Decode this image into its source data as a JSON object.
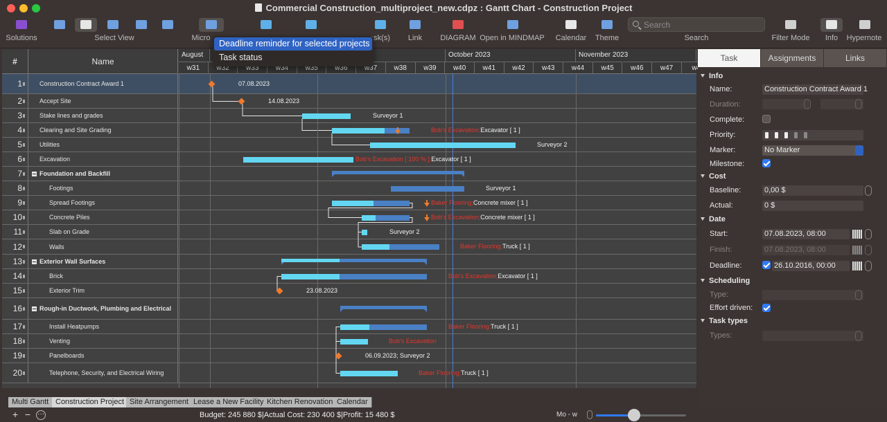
{
  "window": {
    "title": "Commercial Construction_multiproject_new.cdpz : Gantt Chart - Construction Project"
  },
  "toolbar": {
    "items": [
      {
        "id": "solutions",
        "label": "Solutions",
        "icon": "solutions-icon",
        "color": "#8a4fd0"
      },
      {
        "id": "view1",
        "label": "",
        "icon": "panels-icon",
        "color": "#6fa0e0"
      },
      {
        "id": "view2",
        "label": "",
        "icon": "gantt-view-icon",
        "color": "#e6e6e6"
      },
      {
        "id": "view3",
        "label": "Select View",
        "icon": "resources-icon",
        "color": "#6fa0e0"
      },
      {
        "id": "view4",
        "label": "",
        "icon": "resource-gantt-icon",
        "color": "#6fa0e0"
      },
      {
        "id": "view5",
        "label": "",
        "icon": "document-icon",
        "color": "#6fa0e0"
      },
      {
        "id": "micro",
        "label": "Micro",
        "icon": "printer-icon",
        "color": "#6fa0e0"
      },
      {
        "id": "add",
        "label": "",
        "icon": "add-task-icon",
        "color": "#5fb0e8"
      },
      {
        "id": "outdent",
        "label": "",
        "icon": "outdent-icon",
        "color": "#5fb0e8"
      },
      {
        "id": "tasks",
        "label": "ask(s)",
        "icon": "indent-icon",
        "color": "#5fb0e8"
      },
      {
        "id": "link",
        "label": "Link",
        "icon": "link-icon",
        "color": "#6fa0e0"
      },
      {
        "id": "diagram",
        "label": "DIAGRAM",
        "icon": "diagram-icon",
        "color": "#e05050"
      },
      {
        "id": "mindmap",
        "label": "Open in MINDMAP",
        "icon": "mindmap-icon",
        "color": "#6fa0e0"
      },
      {
        "id": "calendar",
        "label": "Calendar",
        "icon": "calendar-icon",
        "color": "#e8e8e8"
      },
      {
        "id": "theme",
        "label": "Theme",
        "icon": "theme-icon",
        "color": "#6fa0e0"
      },
      {
        "id": "search",
        "label": "Search",
        "icon": "",
        "color": ""
      },
      {
        "id": "filter",
        "label": "Filter Mode",
        "icon": "filter-icon",
        "color": "#cfcfcf"
      },
      {
        "id": "info",
        "label": "Info",
        "icon": "toggle-icon",
        "color": "#e6e6e6"
      },
      {
        "id": "hypernote",
        "label": "Hypernote",
        "icon": "hypernote-icon",
        "color": "#cfcfcf"
      }
    ],
    "search_placeholder": "Search"
  },
  "dropdown": {
    "items": [
      "Deadline reminder for selected projects",
      "Task status"
    ]
  },
  "gantt": {
    "header_num": "#",
    "header_name": "Name",
    "months": [
      "August",
      "October 2023",
      "November 2023"
    ],
    "weeks": [
      "w31",
      "w32",
      "w33",
      "w34",
      "w35",
      "w36",
      "w37",
      "w38",
      "w39",
      "w40",
      "w41",
      "w42",
      "w43",
      "w44",
      "w45",
      "w46",
      "w47",
      "w4"
    ],
    "rows": [
      {
        "num": "1",
        "name": "Construction Contract Award 1",
        "level": 1,
        "group": false
      },
      {
        "num": "2",
        "name": "Accept Site",
        "level": 1,
        "group": false
      },
      {
        "num": "3",
        "name": "Stake lines and grades",
        "level": 1,
        "group": false
      },
      {
        "num": "4",
        "name": "Clearing and Site Grading",
        "level": 1,
        "group": false
      },
      {
        "num": "5",
        "name": "Utilities",
        "level": 1,
        "group": false
      },
      {
        "num": "6",
        "name": "Excavation",
        "level": 1,
        "group": false
      },
      {
        "num": "7",
        "name": "Foundation and Backfill",
        "level": 0,
        "group": true
      },
      {
        "num": "8",
        "name": "Footings",
        "level": 2,
        "group": false
      },
      {
        "num": "9",
        "name": "Spread Footings",
        "level": 2,
        "group": false
      },
      {
        "num": "10",
        "name": "Concrete Piles",
        "level": 2,
        "group": false
      },
      {
        "num": "11",
        "name": "Slab on Grade",
        "level": 2,
        "group": false
      },
      {
        "num": "12",
        "name": "Walls",
        "level": 2,
        "group": false
      },
      {
        "num": "13",
        "name": "Exterior Wall Surfaces",
        "level": 0,
        "group": true
      },
      {
        "num": "14",
        "name": "Brick",
        "level": 2,
        "group": false
      },
      {
        "num": "15",
        "name": "Exterior Trim",
        "level": 2,
        "group": false
      },
      {
        "num": "16",
        "name": "Rough-in Ductwork, Plumbing and Electrical",
        "level": 0,
        "group": true
      },
      {
        "num": "17",
        "name": "Install Heatpumps",
        "level": 2,
        "group": false
      },
      {
        "num": "18",
        "name": "Venting",
        "level": 2,
        "group": false
      },
      {
        "num": "19",
        "name": "Panelboards",
        "level": 2,
        "group": false
      },
      {
        "num": "20",
        "name": "Telephone, Security, and Electrical Wiring",
        "level": 2,
        "group": false
      }
    ],
    "bar_labels": [
      {
        "red": "",
        "white": "07.08.2023"
      },
      {
        "red": "",
        "white": "14.08.2023"
      },
      {
        "red": "",
        "white": "Surveyor 1"
      },
      {
        "red": "Bob's Excavation;",
        "white": "Excavator [ 1 ]"
      },
      {
        "red": "",
        "white": "Surveyor 2"
      },
      {
        "red": "Bob's Excavation [ 100 % ];",
        "white": "Excavator [ 1 ]"
      },
      {
        "red": "",
        "white": ""
      },
      {
        "red": "",
        "white": "Surveyor 1"
      },
      {
        "red": "Baker Flooring;",
        "white": "Concrete mixer [ 1 ]"
      },
      {
        "red": "Bob's Excavation;",
        "white": "Concrete mixer [ 1 ]"
      },
      {
        "red": "",
        "white": "Surveyor 2"
      },
      {
        "red": "Baker Flooring;",
        "white": "Truck [ 1 ]"
      },
      {
        "red": "",
        "white": ""
      },
      {
        "red": "Bob's Excavation;",
        "white": "Excavator [ 1 ]"
      },
      {
        "red": "",
        "white": "23.08.2023"
      },
      {
        "red": "",
        "white": ""
      },
      {
        "red": "Baker Flooring;",
        "white": "Truck [ 1 ]"
      },
      {
        "red": "Bob's Excavation",
        "white": ""
      },
      {
        "red": "",
        "white": "06.09.2023; Surveyor 2"
      },
      {
        "red": "Baker Flooring;",
        "white": "Truck [ 1 ]"
      }
    ]
  },
  "inspector": {
    "tabs": [
      "Task",
      "Assignments",
      "Links"
    ],
    "sections": {
      "info": "Info",
      "cost": "Cost",
      "date": "Date",
      "scheduling": "Scheduling",
      "task_types": "Task types"
    },
    "labels": {
      "name": "Name:",
      "duration": "Duration:",
      "complete": "Complete:",
      "priority": "Priority:",
      "marker": "Marker:",
      "milestone": "Milestone:",
      "baseline": "Baseline:",
      "actual": "Actual:",
      "start": "Start:",
      "finish": "Finish:",
      "deadline": "Deadline:",
      "type": "Type:",
      "effort_driven": "Effort driven:",
      "types": "Types:"
    },
    "values": {
      "name": "Construction Contract Award 1",
      "marker": "No Marker",
      "baseline": "0,00 $",
      "actual": "0 $",
      "start": "07.08.2023, 08:00",
      "finish": "07.08.2023, 08:00",
      "deadline": "26.10.2016, 00:00"
    },
    "checks": {
      "complete": false,
      "milestone": true,
      "deadline": true,
      "effort_driven": true
    }
  },
  "bottom_tabs": {
    "items": [
      "Multi Gantt",
      "Construction Project",
      "Site Arrangement",
      "Lease a New Facility",
      "Kitchen Renovation",
      "Calendar"
    ],
    "active": "Construction Project"
  },
  "status": {
    "text": "Budget: 245 880 $|Actual Cost: 230 400 $|Profit: 15 480 $",
    "zoom_label": "Mo - w",
    "zoom_level": 0.42
  }
}
